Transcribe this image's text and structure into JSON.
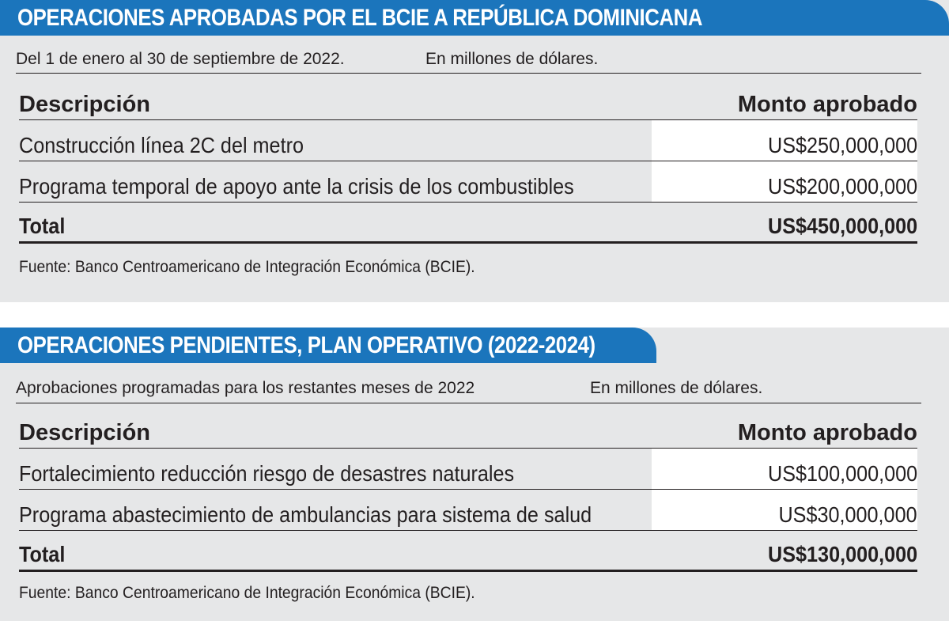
{
  "tables": [
    {
      "title": "OPERACIONES APROBADAS POR EL BCIE A REPÚBLICA DOMINICANA",
      "period": "Del 1 de enero al 30 de septiembre de 2022.",
      "units": "En millones de dólares.",
      "headers": {
        "description": "Descripción",
        "amount": "Monto aprobado"
      },
      "rows": [
        {
          "description": "Construcción línea 2C del metro",
          "amount": "US$250,000,000"
        },
        {
          "description": "Programa temporal de apoyo ante la crisis de los combustibles",
          "amount": "US$200,000,000"
        }
      ],
      "total": {
        "label": "Total",
        "amount": "US$450,000,000"
      },
      "source": "Fuente: Banco Centroamericano de Integración Económica (BCIE)."
    },
    {
      "title": "OPERACIONES PENDIENTES, PLAN OPERATIVO (2022-2024)",
      "period": "Aprobaciones programadas para los restantes meses de 2022",
      "units": "En millones de dólares.",
      "headers": {
        "description": "Descripción",
        "amount": "Monto aprobado"
      },
      "rows": [
        {
          "description": "Fortalecimiento reducción riesgo de desastres naturales",
          "amount": "US$100,000,000"
        },
        {
          "description": "Programa abastecimiento de ambulancias para sistema de salud",
          "amount": "US$30,000,000"
        }
      ],
      "total": {
        "label": "Total",
        "amount": "US$130,000,000"
      },
      "source": "Fuente: Banco Centroamericano de Integración Económica (BCIE)."
    }
  ],
  "colors": {
    "banner": "#1b75bc",
    "panel": "#e6e7e8",
    "text": "#231f20"
  }
}
